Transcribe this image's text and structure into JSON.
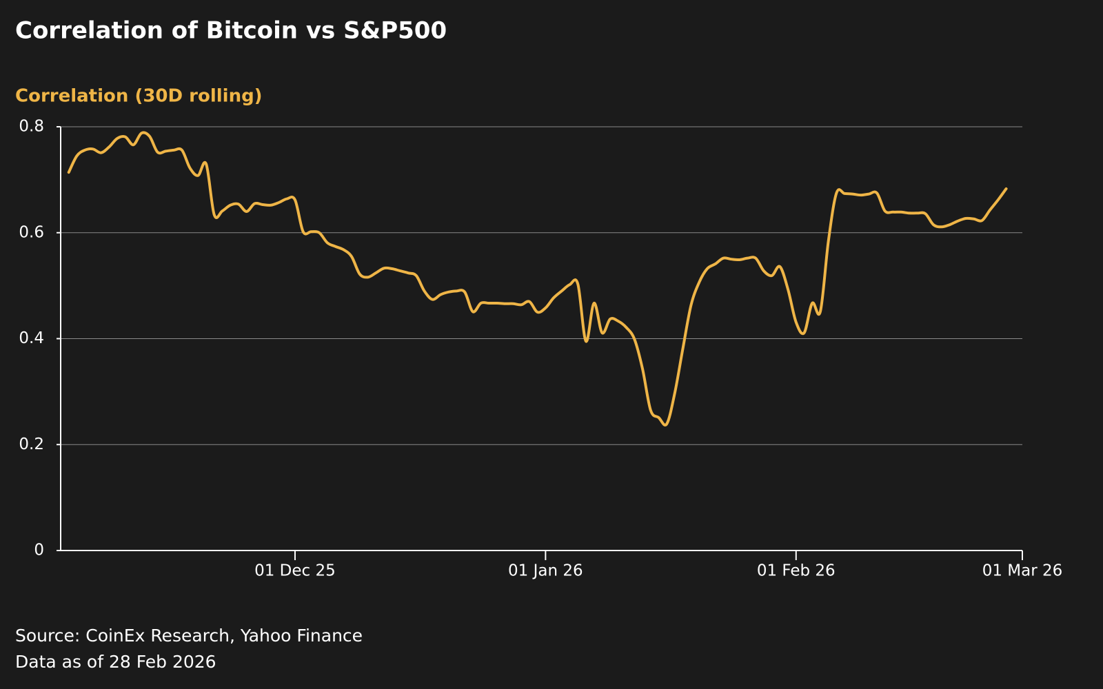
{
  "chart_data": {
    "type": "line",
    "title": "Correlation of Bitcoin vs S&P500",
    "y_label": "Correlation (30D rolling)",
    "source": "Source: CoinEx Research, Yahoo Finance",
    "note": "Data as of 28 Feb 2026",
    "color": "#efb547",
    "grid": true,
    "ylim": [
      0,
      0.8
    ],
    "yticks": [
      0,
      0.2,
      0.4,
      0.6,
      0.8
    ],
    "xlim": [
      "2025-11-02",
      "2026-03-01"
    ],
    "xticks": [
      {
        "value": "2025-12-01",
        "label": "01 Dec 25"
      },
      {
        "value": "2026-01-01",
        "label": "01 Jan 26"
      },
      {
        "value": "2026-02-01",
        "label": "01 Feb 26"
      },
      {
        "value": "2026-03-01",
        "label": "01 Mar 26"
      }
    ],
    "x": [
      "2025-11-03",
      "2025-11-04",
      "2025-11-05",
      "2025-11-06",
      "2025-11-07",
      "2025-11-08",
      "2025-11-09",
      "2025-11-10",
      "2025-11-11",
      "2025-11-12",
      "2025-11-13",
      "2025-11-14",
      "2025-11-15",
      "2025-11-16",
      "2025-11-17",
      "2025-11-18",
      "2025-11-19",
      "2025-11-20",
      "2025-11-21",
      "2025-11-22",
      "2025-11-23",
      "2025-11-24",
      "2025-11-25",
      "2025-11-26",
      "2025-11-27",
      "2025-11-28",
      "2025-11-29",
      "2025-11-30",
      "2025-12-01",
      "2025-12-02",
      "2025-12-03",
      "2025-12-04",
      "2025-12-05",
      "2025-12-06",
      "2025-12-07",
      "2025-12-08",
      "2025-12-09",
      "2025-12-10",
      "2025-12-11",
      "2025-12-12",
      "2025-12-13",
      "2025-12-14",
      "2025-12-15",
      "2025-12-16",
      "2025-12-17",
      "2025-12-18",
      "2025-12-19",
      "2025-12-20",
      "2025-12-21",
      "2025-12-22",
      "2025-12-23",
      "2025-12-24",
      "2025-12-25",
      "2025-12-26",
      "2025-12-27",
      "2025-12-28",
      "2025-12-29",
      "2025-12-30",
      "2025-12-31",
      "2026-01-01",
      "2026-01-02",
      "2026-01-03",
      "2026-01-04",
      "2026-01-05",
      "2026-01-06",
      "2026-01-07",
      "2026-01-08",
      "2026-01-09",
      "2026-01-10",
      "2026-01-11",
      "2026-01-12",
      "2026-01-13",
      "2026-01-14",
      "2026-01-15",
      "2026-01-16",
      "2026-01-17",
      "2026-01-18",
      "2026-01-19",
      "2026-01-20",
      "2026-01-21",
      "2026-01-22",
      "2026-01-23",
      "2026-01-24",
      "2026-01-25",
      "2026-01-26",
      "2026-01-27",
      "2026-01-28",
      "2026-01-29",
      "2026-01-30",
      "2026-01-31",
      "2026-02-01",
      "2026-02-02",
      "2026-02-03",
      "2026-02-04",
      "2026-02-05",
      "2026-02-06",
      "2026-02-07",
      "2026-02-08",
      "2026-02-09",
      "2026-02-10",
      "2026-02-11",
      "2026-02-12",
      "2026-02-13",
      "2026-02-14",
      "2026-02-15",
      "2026-02-16",
      "2026-02-17",
      "2026-02-18",
      "2026-02-19",
      "2026-02-20",
      "2026-02-21",
      "2026-02-22",
      "2026-02-23",
      "2026-02-24",
      "2026-02-25",
      "2026-02-26",
      "2026-02-27"
    ],
    "values": [
      0.714,
      0.745,
      0.756,
      0.758,
      0.751,
      0.762,
      0.778,
      0.781,
      0.766,
      0.788,
      0.782,
      0.752,
      0.754,
      0.756,
      0.756,
      0.722,
      0.708,
      0.73,
      0.634,
      0.641,
      0.652,
      0.654,
      0.64,
      0.655,
      0.653,
      0.652,
      0.657,
      0.664,
      0.662,
      0.602,
      0.602,
      0.6,
      0.581,
      0.574,
      0.568,
      0.555,
      0.522,
      0.516,
      0.524,
      0.533,
      0.532,
      0.528,
      0.524,
      0.519,
      0.49,
      0.474,
      0.483,
      0.488,
      0.49,
      0.488,
      0.451,
      0.467,
      0.467,
      0.467,
      0.466,
      0.466,
      0.464,
      0.47,
      0.45,
      0.458,
      0.477,
      0.49,
      0.502,
      0.503,
      0.395,
      0.467,
      0.411,
      0.437,
      0.433,
      0.421,
      0.399,
      0.343,
      0.265,
      0.251,
      0.239,
      0.298,
      0.382,
      0.463,
      0.506,
      0.532,
      0.541,
      0.552,
      0.55,
      0.549,
      0.552,
      0.552,
      0.528,
      0.519,
      0.536,
      0.493,
      0.431,
      0.411,
      0.467,
      0.451,
      0.584,
      0.675,
      0.674,
      0.673,
      0.671,
      0.673,
      0.675,
      0.641,
      0.639,
      0.639,
      0.637,
      0.637,
      0.636,
      0.615,
      0.611,
      0.615,
      0.622,
      0.627,
      0.626,
      0.623,
      0.643,
      0.662,
      0.683
    ]
  }
}
